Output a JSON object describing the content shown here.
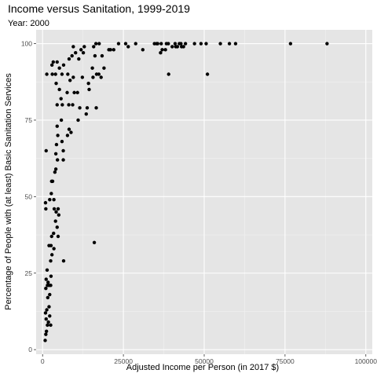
{
  "chart_data": {
    "type": "scatter",
    "title": "Income versus Sanitation, 1999-2019",
    "subtitle": "Year: 2000",
    "xlabel": "Adjusted Income per Person (in 2017 $)",
    "ylabel": "Percentage of People with (at least) Basic Sanitation Services",
    "xlim": [
      -2000,
      102000
    ],
    "ylim": [
      -1.5,
      104.5
    ],
    "xticks": [
      0,
      25000,
      50000,
      75000,
      100000
    ],
    "xtick_labels": [
      "0",
      "25000",
      "50000",
      "75000",
      "100000"
    ],
    "yticks": [
      0,
      25,
      50,
      75,
      100
    ],
    "ytick_labels": [
      "0",
      "25",
      "50",
      "75",
      "100"
    ],
    "grid": true,
    "legend": "none",
    "colors": {
      "panel": "#e5e5e5",
      "grid_major": "#ffffff",
      "point": "#000000"
    },
    "points": [
      [
        800,
        3
      ],
      [
        1000,
        5
      ],
      [
        1200,
        6
      ],
      [
        1500,
        8
      ],
      [
        2500,
        8
      ],
      [
        1100,
        10
      ],
      [
        1800,
        9
      ],
      [
        2200,
        11
      ],
      [
        900,
        12
      ],
      [
        1300,
        13
      ],
      [
        2000,
        14
      ],
      [
        1600,
        17
      ],
      [
        2200,
        18
      ],
      [
        1000,
        20
      ],
      [
        1500,
        21
      ],
      [
        2000,
        21
      ],
      [
        2500,
        21
      ],
      [
        1100,
        23
      ],
      [
        1700,
        22
      ],
      [
        2600,
        24
      ],
      [
        1400,
        26
      ],
      [
        2500,
        29
      ],
      [
        2900,
        31
      ],
      [
        3500,
        33
      ],
      [
        2000,
        34
      ],
      [
        2600,
        34
      ],
      [
        6500,
        29
      ],
      [
        2800,
        37
      ],
      [
        3400,
        38
      ],
      [
        4800,
        37
      ],
      [
        4500,
        40
      ],
      [
        4000,
        42
      ],
      [
        5000,
        44
      ],
      [
        4200,
        45
      ],
      [
        3600,
        46
      ],
      [
        4800,
        46
      ],
      [
        1000,
        46
      ],
      [
        900,
        48
      ],
      [
        2200,
        49
      ],
      [
        3500,
        49
      ],
      [
        2700,
        51
      ],
      [
        3100,
        55
      ],
      [
        2800,
        55
      ],
      [
        3800,
        58
      ],
      [
        4100,
        59
      ],
      [
        4600,
        62
      ],
      [
        6400,
        62
      ],
      [
        4100,
        64
      ],
      [
        6400,
        65
      ],
      [
        1100,
        65
      ],
      [
        4300,
        67
      ],
      [
        6000,
        68
      ],
      [
        4700,
        70
      ],
      [
        7700,
        70
      ],
      [
        8800,
        71
      ],
      [
        4500,
        73
      ],
      [
        5800,
        75
      ],
      [
        8200,
        72
      ],
      [
        11000,
        75
      ],
      [
        13500,
        77
      ],
      [
        11500,
        79
      ],
      [
        9300,
        80
      ],
      [
        13800,
        79
      ],
      [
        6100,
        80
      ],
      [
        4500,
        80
      ],
      [
        8100,
        80
      ],
      [
        16600,
        79
      ],
      [
        5700,
        82
      ],
      [
        7600,
        84
      ],
      [
        9800,
        84
      ],
      [
        10800,
        84
      ],
      [
        14400,
        85
      ],
      [
        5200,
        85
      ],
      [
        4200,
        87
      ],
      [
        8500,
        88
      ],
      [
        14200,
        87
      ],
      [
        9500,
        89
      ],
      [
        12300,
        89
      ],
      [
        15600,
        89
      ],
      [
        18100,
        89
      ],
      [
        17400,
        90
      ],
      [
        16700,
        90
      ],
      [
        15400,
        92
      ],
      [
        19000,
        92
      ],
      [
        39000,
        90
      ],
      [
        51000,
        90
      ],
      [
        1300,
        90
      ],
      [
        3000,
        90
      ],
      [
        4000,
        90
      ],
      [
        6000,
        90
      ],
      [
        7800,
        90
      ],
      [
        5200,
        92
      ],
      [
        6500,
        93
      ],
      [
        2900,
        93
      ],
      [
        3300,
        94
      ],
      [
        4500,
        94
      ],
      [
        8200,
        95
      ],
      [
        11200,
        95
      ],
      [
        9100,
        96
      ],
      [
        16200,
        96
      ],
      [
        18400,
        96
      ],
      [
        21000,
        98
      ],
      [
        10200,
        97
      ],
      [
        12600,
        97
      ],
      [
        20500,
        98
      ],
      [
        11900,
        98
      ],
      [
        22000,
        98
      ],
      [
        9500,
        99
      ],
      [
        15800,
        99
      ],
      [
        31000,
        98
      ],
      [
        12900,
        99
      ],
      [
        26500,
        99
      ],
      [
        36500,
        97
      ],
      [
        38000,
        98
      ],
      [
        17500,
        100
      ],
      [
        16500,
        100
      ],
      [
        23500,
        100
      ],
      [
        25700,
        100
      ],
      [
        28800,
        100
      ],
      [
        34600,
        100
      ],
      [
        35600,
        100
      ],
      [
        36700,
        100
      ],
      [
        38300,
        100
      ],
      [
        38900,
        100
      ],
      [
        40100,
        99
      ],
      [
        41200,
        99
      ],
      [
        41700,
        99
      ],
      [
        42300,
        100
      ],
      [
        42800,
        100
      ],
      [
        43600,
        99
      ],
      [
        44200,
        100
      ],
      [
        47000,
        100
      ],
      [
        49000,
        100
      ],
      [
        50600,
        100
      ],
      [
        55000,
        100
      ],
      [
        57800,
        100
      ],
      [
        59700,
        100
      ],
      [
        76700,
        100
      ],
      [
        88000,
        100
      ],
      [
        35300,
        100
      ],
      [
        41000,
        100
      ],
      [
        43000,
        99
      ],
      [
        37000,
        98
      ],
      [
        16000,
        35
      ]
    ]
  }
}
